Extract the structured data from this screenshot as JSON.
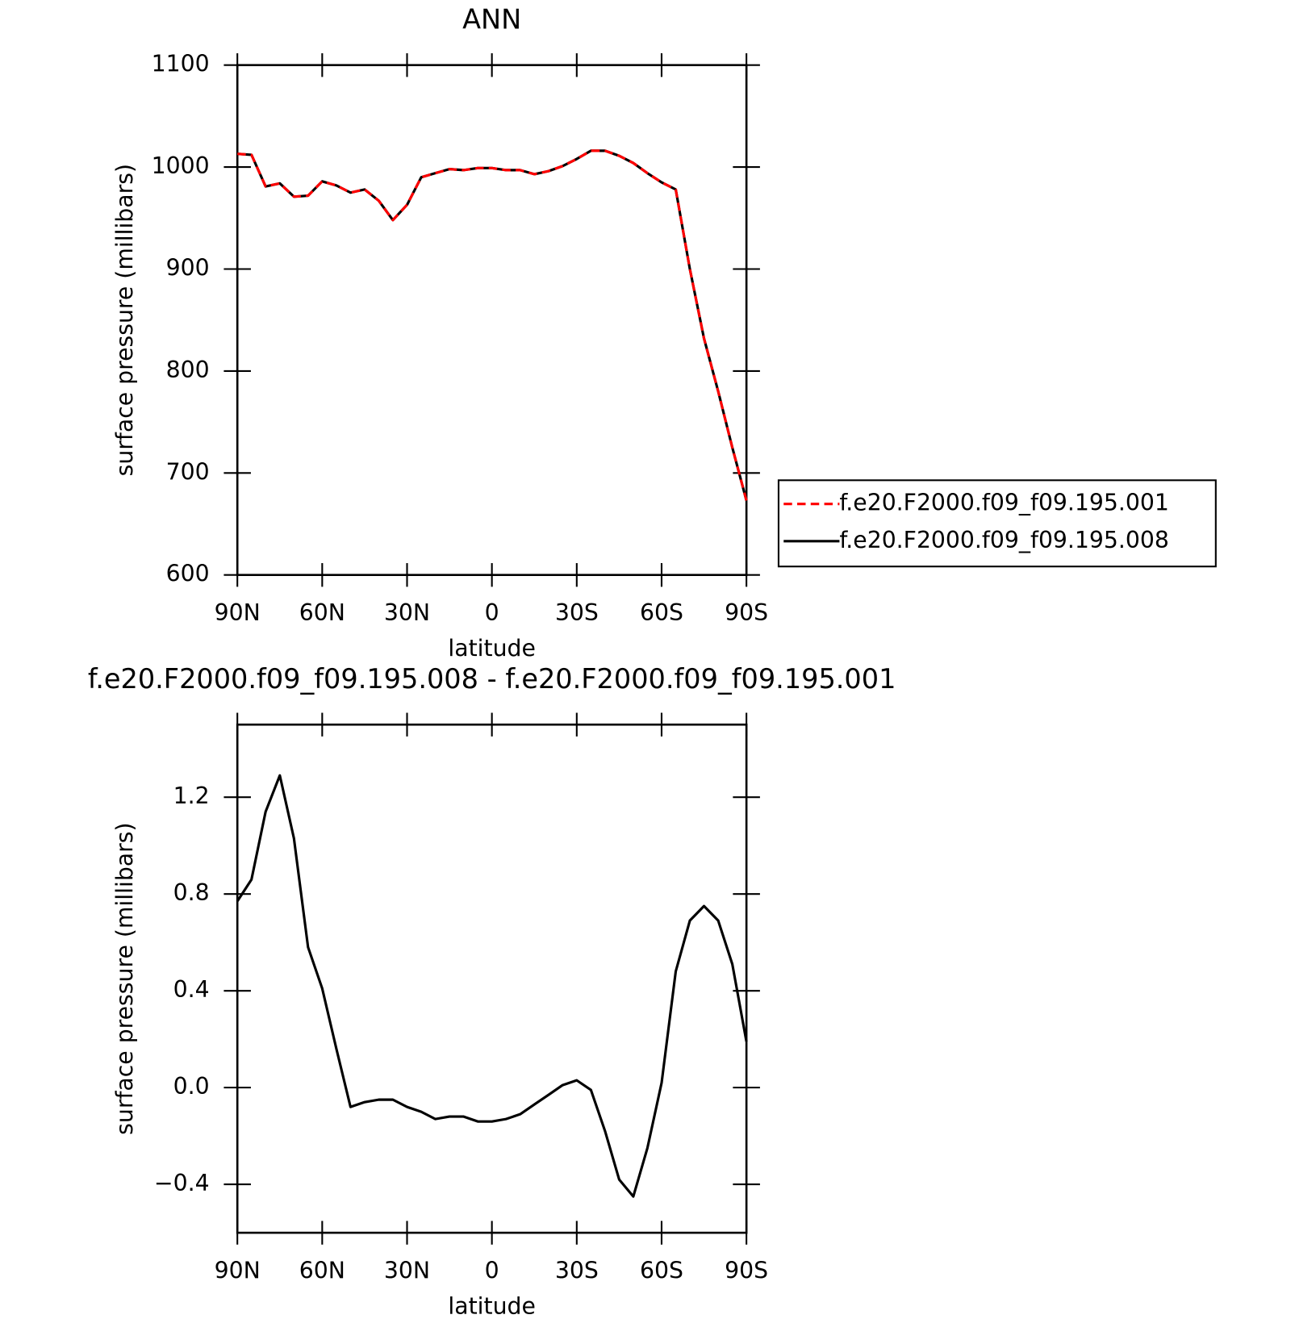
{
  "chart_data": [
    {
      "type": "line",
      "title": "ANN",
      "x_label": "latitude",
      "y_label": "surface pressure (millibars)",
      "x": [
        90,
        85,
        80,
        75,
        70,
        65,
        60,
        55,
        50,
        45,
        40,
        35,
        30,
        25,
        20,
        15,
        10,
        5,
        0,
        -5,
        -10,
        -15,
        -20,
        -25,
        -30,
        -35,
        -40,
        -45,
        -50,
        -55,
        -60,
        -65,
        -70,
        -75,
        -80,
        -85,
        -90
      ],
      "series": [
        {
          "name": "f.e20.F2000.f09_f09.195.001",
          "color": "#ff0000",
          "line_style": "dashed",
          "values": [
            1013,
            1012,
            981,
            984,
            971,
            972,
            986,
            982,
            975,
            978,
            967,
            948,
            963,
            990,
            994,
            998,
            997,
            999,
            999,
            997,
            997,
            993,
            996,
            1001,
            1008,
            1016,
            1016,
            1011,
            1004,
            994,
            985,
            978,
            900,
            832,
            780,
            725,
            673
          ]
        },
        {
          "name": "f.e20.F2000.f09_f09.195.008",
          "color": "#000000",
          "line_style": "solid",
          "values": [
            1013,
            1012,
            981,
            984,
            971,
            972,
            986,
            982,
            975,
            978,
            967,
            948,
            963,
            990,
            994,
            998,
            997,
            999,
            999,
            997,
            997,
            993,
            996,
            1001,
            1008,
            1016,
            1016,
            1011,
            1004,
            994,
            985,
            978,
            900,
            832,
            780,
            725,
            673
          ]
        }
      ],
      "xlim": [
        90,
        -90
      ],
      "xticks": [
        {
          "value": 90,
          "label": "90N"
        },
        {
          "value": 60,
          "label": "60N"
        },
        {
          "value": 30,
          "label": "30N"
        },
        0,
        {
          "value": -30,
          "label": "30S"
        },
        {
          "value": -60,
          "label": "60S"
        },
        {
          "value": -90,
          "label": "90S"
        }
      ],
      "ylim": [
        600,
        1100
      ],
      "yticks": [
        600,
        700,
        800,
        900,
        1000,
        1100
      ],
      "legend": "right"
    },
    {
      "type": "line",
      "title": "f.e20.F2000.f09_f09.195.008 - f.e20.F2000.f09_f09.195.001",
      "x_label": "latitude",
      "y_label": "surface pressure (millibars)",
      "x": [
        90,
        85,
        80,
        75,
        70,
        65,
        60,
        55,
        50,
        45,
        40,
        35,
        30,
        25,
        20,
        15,
        10,
        5,
        0,
        -5,
        -10,
        -15,
        -20,
        -25,
        -30,
        -35,
        -40,
        -45,
        -50,
        -55,
        -60,
        -65,
        -70,
        -75,
        -80,
        -85,
        -90
      ],
      "series": [
        {
          "color": "#000000",
          "line_style": "solid",
          "values": [
            0.77,
            0.86,
            1.14,
            1.29,
            1.03,
            0.58,
            0.41,
            0.16,
            -0.08,
            -0.06,
            -0.05,
            -0.05,
            -0.08,
            -0.1,
            -0.13,
            -0.12,
            -0.12,
            -0.14,
            -0.14,
            -0.13,
            -0.11,
            -0.07,
            -0.03,
            0.01,
            0.03,
            -0.01,
            -0.18,
            -0.38,
            -0.45,
            -0.25,
            0.02,
            0.48,
            0.69,
            0.75,
            0.69,
            0.51,
            0.19
          ]
        }
      ],
      "xlim": [
        90,
        -90
      ],
      "xticks": [
        {
          "value": 90,
          "label": "90N"
        },
        {
          "value": 60,
          "label": "60N"
        },
        {
          "value": 30,
          "label": "30N"
        },
        0,
        {
          "value": -30,
          "label": "30S"
        },
        {
          "value": -60,
          "label": "60S"
        },
        {
          "value": -90,
          "label": "90S"
        }
      ],
      "ylim": [
        -0.6,
        1.5
      ],
      "yticks": [
        {
          "value": -0.4,
          "label": "−0.4"
        },
        {
          "value": 0,
          "label": "0.0"
        },
        0.4,
        0.8,
        1.2
      ]
    }
  ]
}
